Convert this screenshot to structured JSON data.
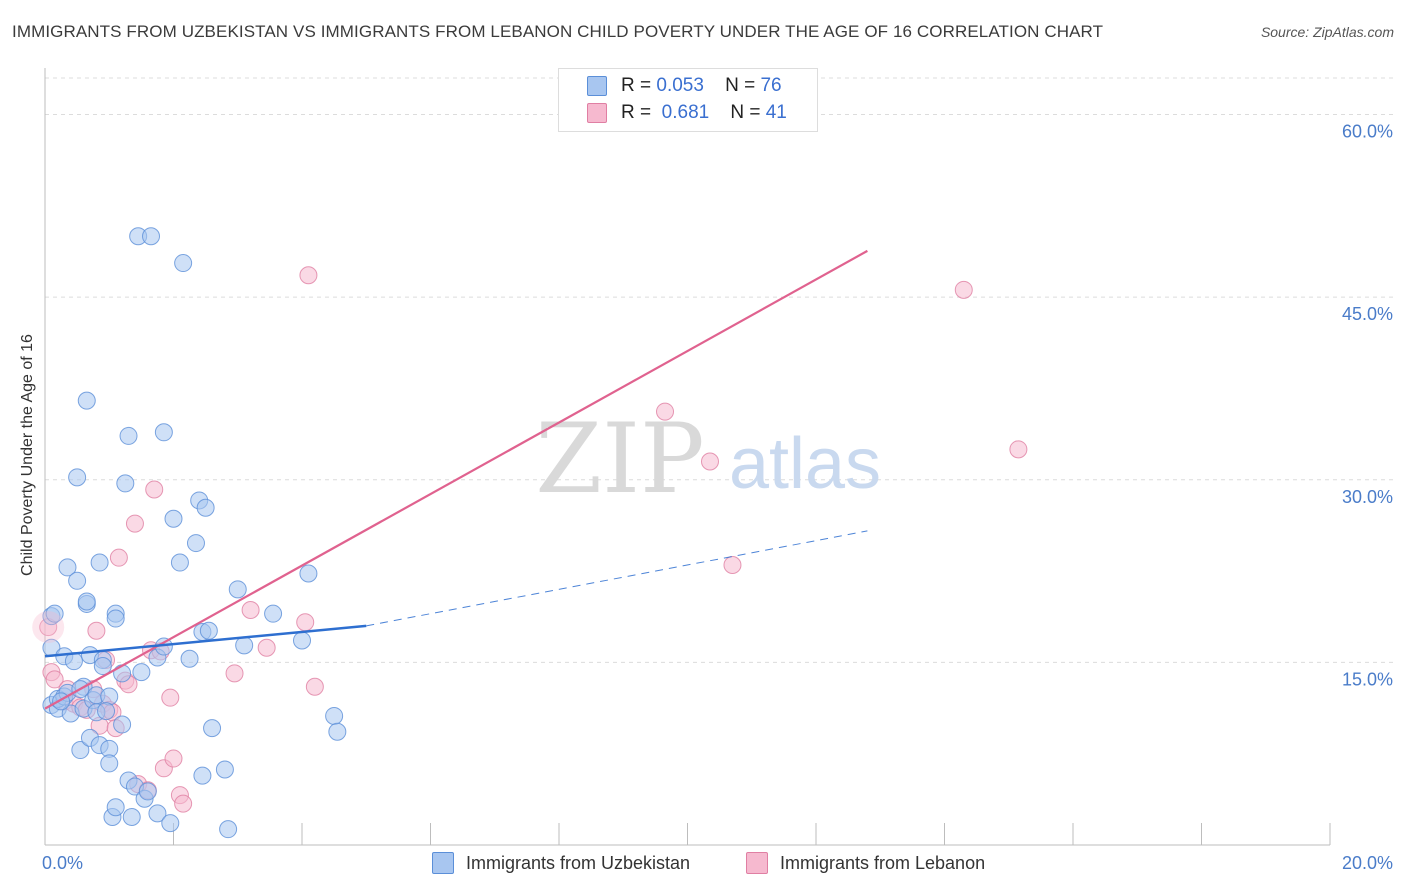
{
  "title": "IMMIGRANTS FROM UZBEKISTAN VS IMMIGRANTS FROM LEBANON CHILD POVERTY UNDER THE AGE OF 16 CORRELATION CHART",
  "source": "Source: ZipAtlas.com",
  "watermark": {
    "zip": "ZIP",
    "atlas": "atlas"
  },
  "legend_top": [
    {
      "r_label": "R =",
      "r_value": "0.053",
      "n_label": "N =",
      "n_value": "76"
    },
    {
      "r_label": "R =",
      "r_value": "0.681",
      "n_label": "N =",
      "n_value": "41"
    }
  ],
  "legend_bottom": [
    "Immigrants from Uzbekistan",
    "Immigrants from Lebanon"
  ],
  "colors": {
    "series1_fill": "#a8c6f0",
    "series1_stroke": "#5b8fd8",
    "series1_line": "#2e6fd0",
    "series2_fill": "#f6b9cf",
    "series2_stroke": "#e07fa3",
    "series2_line": "#e0628f",
    "tick_text": "#4a7cc9",
    "grid": "#dcdcdc"
  },
  "chart_data": {
    "type": "scatter",
    "title": "IMMIGRANTS FROM UZBEKISTAN VS IMMIGRANTS FROM LEBANON CHILD POVERTY UNDER THE AGE OF 16 CORRELATION CHART",
    "xlabel": "",
    "ylabel": "Child Poverty Under the Age of 16",
    "xlim": [
      0,
      20
    ],
    "ylim": [
      0,
      63
    ],
    "x_tick_labels": [
      {
        "value": 0,
        "label": "0.0%"
      },
      {
        "value": 20,
        "label": "20.0%"
      }
    ],
    "y_tick_labels": [
      {
        "value": 15,
        "label": "15.0%"
      },
      {
        "value": 30,
        "label": "30.0%"
      },
      {
        "value": 45,
        "label": "45.0%"
      },
      {
        "value": 60,
        "label": "60.0%"
      }
    ],
    "series": [
      {
        "name": "Immigrants from Uzbekistan",
        "R": 0.053,
        "N": 76,
        "trend_solid": [
          [
            0,
            15.5
          ],
          [
            5,
            18
          ]
        ],
        "trend_dashed": [
          [
            5,
            18
          ],
          [
            12.8,
            25.8
          ]
        ],
        "points": [
          [
            0.1,
            18.8
          ],
          [
            0.1,
            16.2
          ],
          [
            0.1,
            11.5
          ],
          [
            0.15,
            19
          ],
          [
            0.2,
            11.2
          ],
          [
            0.2,
            12
          ],
          [
            0.3,
            12.2
          ],
          [
            0.3,
            15.5
          ],
          [
            0.35,
            12.5
          ],
          [
            0.35,
            22.8
          ],
          [
            0.4,
            10.8
          ],
          [
            0.45,
            15.1
          ],
          [
            0.5,
            21.7
          ],
          [
            0.5,
            30.2
          ],
          [
            0.55,
            7.8
          ],
          [
            0.6,
            11.2
          ],
          [
            0.6,
            13
          ],
          [
            0.65,
            19.8
          ],
          [
            0.65,
            20
          ],
          [
            0.65,
            36.5
          ],
          [
            0.7,
            15.6
          ],
          [
            0.7,
            8.8
          ],
          [
            0.75,
            11.9
          ],
          [
            0.8,
            12.3
          ],
          [
            0.8,
            10.9
          ],
          [
            0.85,
            23.2
          ],
          [
            0.85,
            8.2
          ],
          [
            0.9,
            15.2
          ],
          [
            0.9,
            14.7
          ],
          [
            1.0,
            12.2
          ],
          [
            1.0,
            7.9
          ],
          [
            1.0,
            6.7
          ],
          [
            1.05,
            2.3
          ],
          [
            1.1,
            19
          ],
          [
            1.1,
            18.6
          ],
          [
            1.1,
            3.1
          ],
          [
            1.2,
            9.9
          ],
          [
            1.2,
            14.1
          ],
          [
            1.25,
            29.7
          ],
          [
            1.3,
            5.3
          ],
          [
            1.3,
            33.6
          ],
          [
            1.35,
            2.3
          ],
          [
            1.4,
            4.8
          ],
          [
            1.45,
            50
          ],
          [
            1.5,
            14.2
          ],
          [
            1.55,
            3.8
          ],
          [
            1.6,
            4.4
          ],
          [
            1.65,
            50
          ],
          [
            1.75,
            15.4
          ],
          [
            1.75,
            2.6
          ],
          [
            1.85,
            16.3
          ],
          [
            1.85,
            33.9
          ],
          [
            1.95,
            1.8
          ],
          [
            2.0,
            26.8
          ],
          [
            2.1,
            23.2
          ],
          [
            2.15,
            47.8
          ],
          [
            2.25,
            15.3
          ],
          [
            2.35,
            24.8
          ],
          [
            2.4,
            28.3
          ],
          [
            2.45,
            5.7
          ],
          [
            2.45,
            17.5
          ],
          [
            2.5,
            27.7
          ],
          [
            2.55,
            17.6
          ],
          [
            2.6,
            9.6
          ],
          [
            2.8,
            6.2
          ],
          [
            2.85,
            1.3
          ],
          [
            3.0,
            21
          ],
          [
            3.1,
            16.4
          ],
          [
            3.55,
            19
          ],
          [
            4.0,
            16.8
          ],
          [
            4.1,
            22.3
          ],
          [
            4.5,
            10.6
          ],
          [
            4.55,
            9.3
          ],
          [
            0.25,
            11.8
          ],
          [
            0.55,
            12.8
          ],
          [
            0.95,
            11.0
          ]
        ]
      },
      {
        "name": "Immigrants from Lebanon",
        "R": 0.681,
        "N": 41,
        "trend_solid": [
          [
            0,
            11.2
          ],
          [
            12.8,
            48.8
          ]
        ],
        "points": [
          [
            0.05,
            17.9
          ],
          [
            0.1,
            14.2
          ],
          [
            0.15,
            13.6
          ],
          [
            0.3,
            11.8
          ],
          [
            0.35,
            12.8
          ],
          [
            0.45,
            11.6
          ],
          [
            0.55,
            11.3
          ],
          [
            0.65,
            11.1
          ],
          [
            0.75,
            12.8
          ],
          [
            0.8,
            17.6
          ],
          [
            0.85,
            9.8
          ],
          [
            0.9,
            11.6
          ],
          [
            0.95,
            15.2
          ],
          [
            1.0,
            11.1
          ],
          [
            1.05,
            10.9
          ],
          [
            1.1,
            9.6
          ],
          [
            1.15,
            23.6
          ],
          [
            1.25,
            13.5
          ],
          [
            1.3,
            13.2
          ],
          [
            1.4,
            26.4
          ],
          [
            1.45,
            5
          ],
          [
            1.6,
            4.5
          ],
          [
            1.65,
            16
          ],
          [
            1.7,
            29.2
          ],
          [
            1.8,
            15.9
          ],
          [
            1.85,
            6.3
          ],
          [
            1.95,
            12.1
          ],
          [
            2.0,
            7.1
          ],
          [
            2.1,
            4.1
          ],
          [
            2.15,
            3.4
          ],
          [
            2.95,
            14.1
          ],
          [
            3.2,
            19.3
          ],
          [
            3.45,
            16.2
          ],
          [
            4.05,
            18.3
          ],
          [
            4.2,
            13
          ],
          [
            4.1,
            46.8
          ],
          [
            9.65,
            35.6
          ],
          [
            10.35,
            31.5
          ],
          [
            10.7,
            23
          ],
          [
            14.3,
            45.6
          ],
          [
            15.15,
            32.5
          ]
        ]
      }
    ]
  }
}
